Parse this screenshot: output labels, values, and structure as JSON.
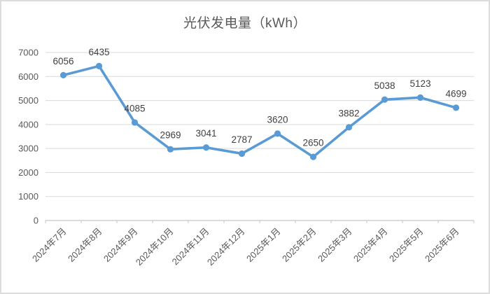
{
  "chart_data": {
    "type": "line",
    "title": "光伏发电量（kWh）",
    "categories": [
      "2024年7月",
      "2024年8月",
      "2024年9月",
      "2024年10月",
      "2024年11月",
      "2024年12月",
      "2025年1月",
      "2025年2月",
      "2025年3月",
      "2025年4月",
      "2025年5月",
      "2025年6月"
    ],
    "series": [
      {
        "name": "光伏发电量",
        "values": [
          6056,
          6435,
          4085,
          2969,
          3041,
          2787,
          3620,
          2650,
          3882,
          5038,
          5123,
          4699
        ]
      }
    ],
    "data_labels": [
      6056,
      6435,
      4085,
      2969,
      3041,
      2787,
      3620,
      2650,
      3882,
      5038,
      5123,
      4699
    ],
    "xlabel": "",
    "ylabel": "",
    "ylim": [
      0,
      7000
    ],
    "ytick_step": 1000,
    "yticks": [
      0,
      1000,
      2000,
      3000,
      4000,
      5000,
      6000,
      7000
    ],
    "grid": "horizontal",
    "legend": "none",
    "marker": "circle",
    "colors": {
      "line": "#5B9BD5",
      "marker": "#5B9BD5",
      "gridline": "#D9D9D9",
      "axis": "#C6C6C6",
      "data_label": "#404040",
      "axis_label": "#595959",
      "title": "#595959",
      "border": "#DCDCDC",
      "background": "#FFFFFF"
    }
  }
}
